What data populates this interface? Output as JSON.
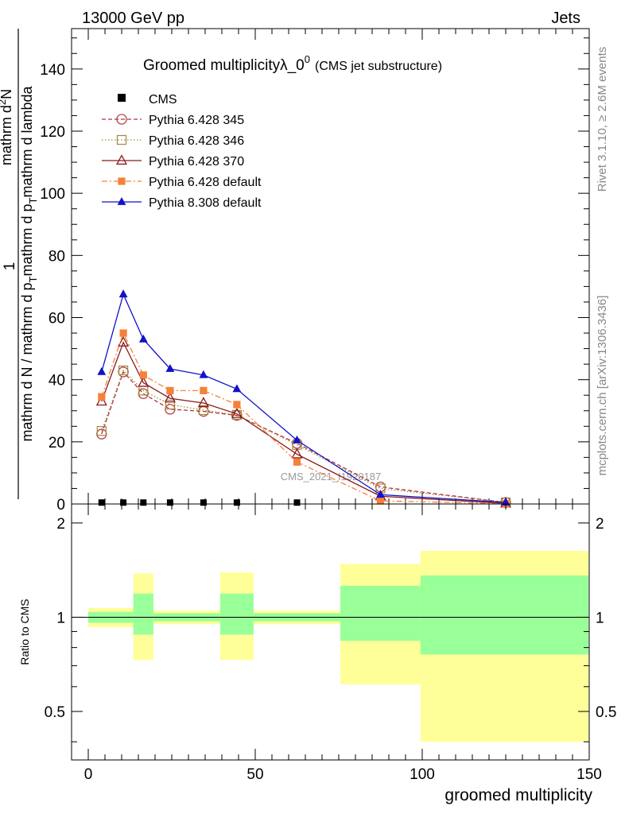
{
  "header": {
    "left": "13000 GeV pp",
    "right": "Jets"
  },
  "plot_title": {
    "main": "Groomed multiplicityλ_0",
    "superscript": "0",
    "sub": "(CMS jet substructure)"
  },
  "side_labels": {
    "rivet": "Rivet 3.1.10, ≥ 2.6M events",
    "mcplots": "mcplots.cern.ch [arXiv:1306.3436]"
  },
  "watermark": "CMS_2021_I1920187",
  "ylabel": {
    "one": "1",
    "numerator": "mathrm d^{2}N",
    "denominator": "mathrm d N / mathrm d p_{T} mathrm d p_{T} mathrm d lambda",
    "num_main": "mathrm d",
    "num_sup": "2",
    "num_tail": "N",
    "den_left": "mathrm d N / mathrm d p",
    "den_sub1": "T",
    "den_mid": "mathrm d p",
    "den_sub2": "T",
    "den_right": "mathrm d lambda"
  },
  "ratio_label": "Ratio to CMS",
  "xlabel": "groomed multiplicity",
  "colors": {
    "p345": "#b0313c",
    "p346": "#a08a3c",
    "p370": "#8b1a1a",
    "p6def": "#f5813a",
    "p8def": "#1212c8",
    "band_inner": "#99ff99",
    "band_outer": "#ffff99"
  },
  "chart_data": {
    "type": "line",
    "xlim": [
      -5,
      150
    ],
    "ylim": [
      0,
      153
    ],
    "ratio_ylim": [
      0.35,
      2.3
    ],
    "x_ticks": [
      "0",
      "50",
      "100",
      "150"
    ],
    "y_ticks": [
      "20",
      "40",
      "60",
      "80",
      "100",
      "120",
      "140"
    ],
    "ratio_ticks": [
      "0.5",
      "1",
      "2"
    ],
    "legend_position": "top-left",
    "grid": false,
    "x": [
      4,
      10.5,
      16.5,
      24.5,
      34.5,
      44.5,
      62.5,
      87.5,
      125
    ],
    "series": [
      {
        "name": "CMS",
        "key": "cms",
        "style": "data",
        "values": [
          0.2,
          0.2,
          0.2,
          0.2,
          0.2,
          0.2,
          0.2,
          null,
          null
        ]
      },
      {
        "name": "Pythia 6.428 345",
        "key": "p345",
        "style": "circle-dash",
        "values": [
          22.5,
          42.5,
          35.5,
          30.5,
          29.8,
          28.5,
          19.5,
          5.5,
          0.5
        ]
      },
      {
        "name": "Pythia 6.428 346",
        "key": "p346",
        "style": "square-dot",
        "values": [
          23.5,
          43.0,
          36.5,
          32.0,
          30.2,
          28.7,
          19.0,
          5.0,
          0.5
        ]
      },
      {
        "name": "Pythia 6.428 370",
        "key": "p370",
        "style": "triangle-solid",
        "values": [
          33.0,
          52.0,
          39.0,
          34.0,
          32.5,
          29.0,
          16.0,
          2.5,
          0.2
        ]
      },
      {
        "name": "Pythia 6.428 default",
        "key": "p6def",
        "style": "fsquare-dashdot",
        "values": [
          34.5,
          55.0,
          41.5,
          36.5,
          36.5,
          32.0,
          13.5,
          1.0,
          0.1
        ]
      },
      {
        "name": "Pythia 8.308 default",
        "key": "p8def",
        "style": "ftriangle-solid",
        "values": [
          42.5,
          67.5,
          53.0,
          43.5,
          41.5,
          37.0,
          20.5,
          3.0,
          0.5
        ]
      }
    ],
    "ratio_bands": [
      {
        "x0": 0,
        "x1": 13.5,
        "inner": [
          0.96,
          1.04
        ],
        "outer": [
          0.93,
          1.07
        ]
      },
      {
        "x0": 13.5,
        "x1": 19.5,
        "inner": [
          0.88,
          1.19
        ],
        "outer": [
          0.73,
          1.38
        ]
      },
      {
        "x0": 19.5,
        "x1": 39.5,
        "inner": [
          0.97,
          1.03
        ],
        "outer": [
          0.95,
          1.05
        ]
      },
      {
        "x0": 39.5,
        "x1": 49.5,
        "inner": [
          0.88,
          1.19
        ],
        "outer": [
          0.73,
          1.39
        ]
      },
      {
        "x0": 49.5,
        "x1": 75.5,
        "inner": [
          0.97,
          1.03
        ],
        "outer": [
          0.95,
          1.05
        ]
      },
      {
        "x0": 75.5,
        "x1": 99.5,
        "inner": [
          0.84,
          1.26
        ],
        "outer": [
          0.61,
          1.48
        ]
      },
      {
        "x0": 99.5,
        "x1": 150,
        "inner": [
          0.76,
          1.36
        ],
        "outer": [
          0.4,
          1.63
        ]
      }
    ]
  }
}
